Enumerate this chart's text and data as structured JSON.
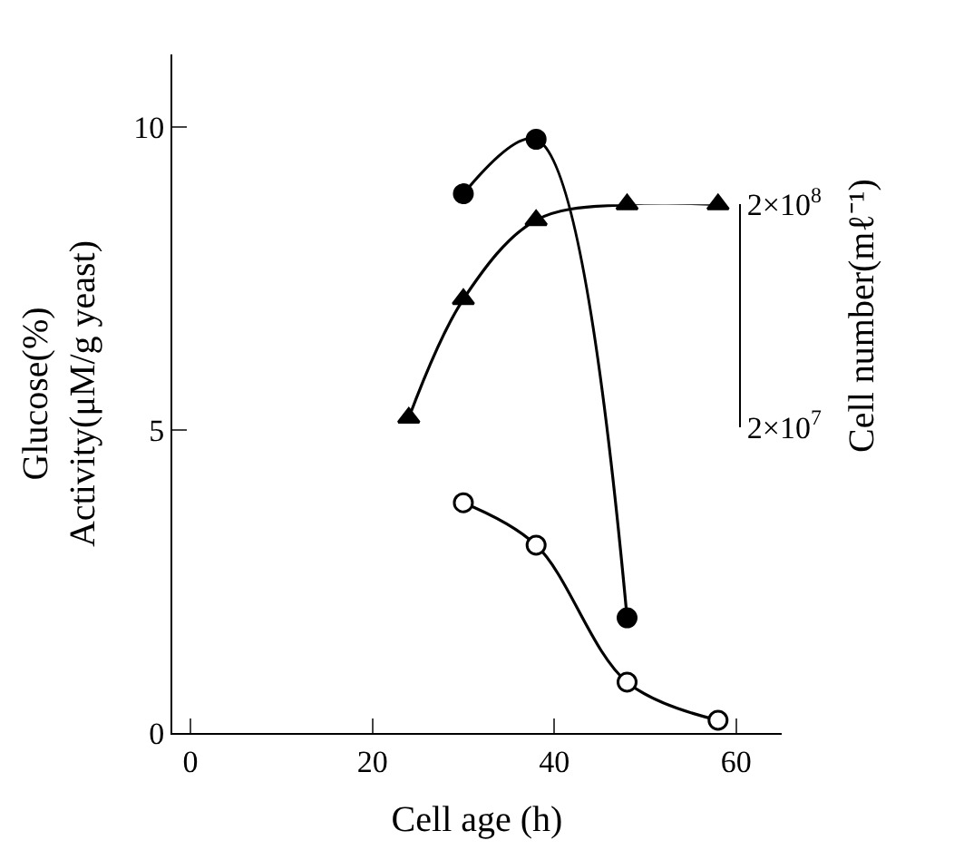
{
  "chart_data": {
    "type": "line",
    "xlabel": "Cell age (h)",
    "ylabel": "Glucose(%)\nActivity(μM/g yeast)",
    "y2label": "Cell number(mℓ⁻¹)",
    "xlim": [
      -2,
      65
    ],
    "xticks": [
      0,
      20,
      40,
      60
    ],
    "ylim": [
      0,
      11.2
    ],
    "yticks": [
      0,
      5,
      10
    ],
    "y2lim": [
      20000000,
      200000000
    ],
    "y2ticks": [
      {
        "value": 20000000,
        "label": "2×10$^{7}$"
      },
      {
        "value": 200000000,
        "label": "2×10$^{8}$"
      }
    ],
    "log": "y2",
    "legend": false,
    "line_style": "solid",
    "series": [
      {
        "color": "#ffffff",
        "marker": "circle",
        "x": [
          30,
          38,
          48,
          58
        ],
        "values": [
          3.8,
          3.1,
          0.84,
          0.21
        ]
      },
      {
        "color": "#000000",
        "marker": "circle",
        "x": [
          30,
          38,
          48
        ],
        "values": [
          8.9,
          9.8,
          1.9
        ]
      },
      {
        "color": "#000000",
        "marker": "triangle",
        "axis": "y2",
        "x": [
          24,
          30,
          38,
          48,
          58
        ],
        "values": [
          22000000,
          75000000,
          170000000,
          200000000,
          200000000
        ]
      }
    ]
  }
}
